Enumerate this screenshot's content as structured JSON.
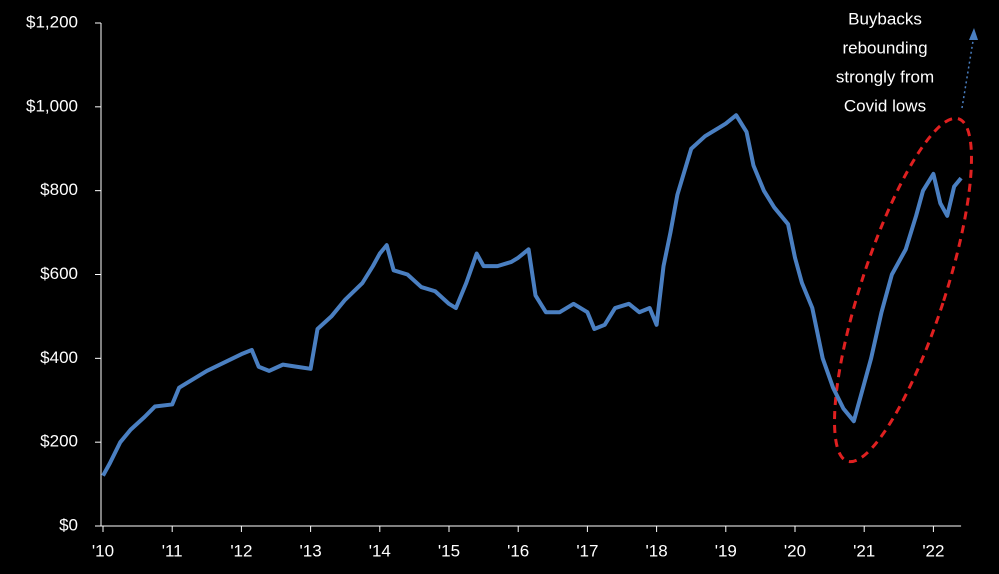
{
  "chart_data": {
    "type": "line",
    "annotation": [
      "Buybacks",
      "rebounding",
      "strongly from",
      "Covid lows"
    ],
    "x": [
      2010.0,
      2010.1,
      2010.25,
      2010.4,
      2010.6,
      2010.75,
      2011.0,
      2011.1,
      2011.3,
      2011.5,
      2011.75,
      2012.0,
      2012.15,
      2012.25,
      2012.4,
      2012.6,
      2012.8,
      2013.0,
      2013.1,
      2013.3,
      2013.5,
      2013.75,
      2013.9,
      2014.0,
      2014.1,
      2014.2,
      2014.4,
      2014.6,
      2014.8,
      2015.0,
      2015.1,
      2015.25,
      2015.4,
      2015.5,
      2015.7,
      2015.9,
      2016.0,
      2016.15,
      2016.25,
      2016.4,
      2016.6,
      2016.8,
      2017.0,
      2017.1,
      2017.25,
      2017.4,
      2017.6,
      2017.75,
      2017.9,
      2018.0,
      2018.1,
      2018.2,
      2018.3,
      2018.5,
      2018.7,
      2018.9,
      2019.0,
      2019.15,
      2019.3,
      2019.4,
      2019.55,
      2019.7,
      2019.9,
      2020.0,
      2020.1,
      2020.25,
      2020.4,
      2020.55,
      2020.7,
      2020.85,
      2021.0,
      2021.1,
      2021.25,
      2021.4,
      2021.6,
      2021.75,
      2021.85,
      2022.0,
      2022.1,
      2022.2,
      2022.3,
      2022.4
    ],
    "series": [
      {
        "color": "#4a7fc1",
        "values": [
          120,
          150,
          200,
          230,
          260,
          285,
          290,
          330,
          350,
          370,
          390,
          410,
          420,
          380,
          370,
          385,
          380,
          375,
          470,
          500,
          540,
          580,
          620,
          650,
          670,
          610,
          600,
          570,
          560,
          530,
          520,
          580,
          650,
          620,
          620,
          630,
          640,
          660,
          550,
          510,
          510,
          530,
          510,
          470,
          480,
          520,
          530,
          510,
          520,
          480,
          620,
          700,
          790,
          900,
          930,
          950,
          960,
          980,
          940,
          860,
          800,
          760,
          720,
          640,
          580,
          520,
          400,
          330,
          280,
          250,
          340,
          400,
          510,
          600,
          660,
          740,
          800,
          840,
          770,
          740,
          810,
          830
        ]
      }
    ],
    "xlim": [
      2010,
      2022.4
    ],
    "xticks": [
      {
        "value": 2010,
        "label": "'10"
      },
      {
        "value": 2011,
        "label": "'11"
      },
      {
        "value": 2012,
        "label": "'12"
      },
      {
        "value": 2013,
        "label": "'13"
      },
      {
        "value": 2014,
        "label": "'14"
      },
      {
        "value": 2015,
        "label": "'15"
      },
      {
        "value": 2016,
        "label": "'16"
      },
      {
        "value": 2017,
        "label": "'17"
      },
      {
        "value": 2018,
        "label": "'18"
      },
      {
        "value": 2019,
        "label": "'19"
      },
      {
        "value": 2020,
        "label": "'20"
      },
      {
        "value": 2021,
        "label": "'21"
      },
      {
        "value": 2022,
        "label": "'22"
      }
    ],
    "ylim": [
      0,
      1200
    ],
    "yticks": [
      {
        "value": 0,
        "label": "$0"
      },
      {
        "value": 200,
        "label": "$200"
      },
      {
        "value": 400,
        "label": "$400"
      },
      {
        "value": 600,
        "label": "$600"
      },
      {
        "value": 800,
        "label": "$800"
      },
      {
        "value": 1000,
        "label": "$1,000"
      },
      {
        "value": 1200,
        "label": "$1,200"
      }
    ]
  }
}
